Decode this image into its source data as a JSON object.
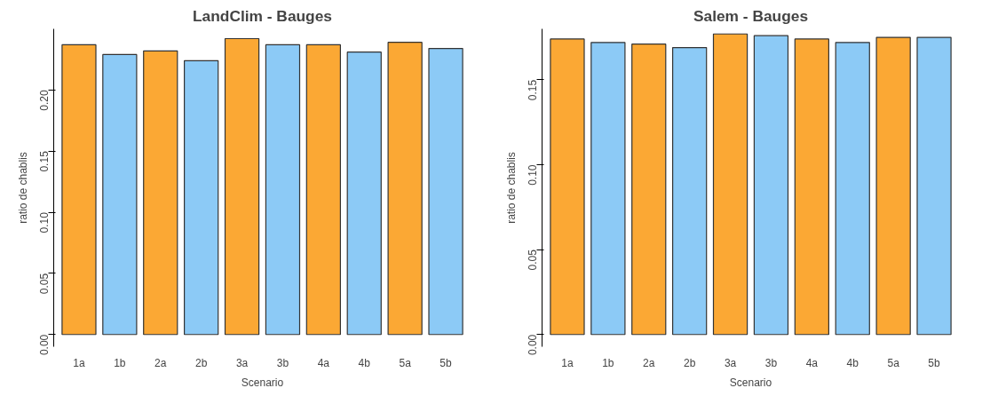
{
  "chart_data": [
    {
      "type": "bar",
      "title": "LandClim - Bauges",
      "xlabel": "Scenario",
      "ylabel": "ratio de chablis",
      "categories": [
        "1a",
        "1b",
        "2a",
        "2b",
        "3a",
        "3b",
        "4a",
        "4b",
        "5a",
        "5b"
      ],
      "values": [
        0.237,
        0.229,
        0.232,
        0.224,
        0.242,
        0.237,
        0.237,
        0.231,
        0.239,
        0.234
      ],
      "colors": [
        "#fba834",
        "#8ccaf6",
        "#fba834",
        "#8ccaf6",
        "#fba834",
        "#8ccaf6",
        "#fba834",
        "#8ccaf6",
        "#fba834",
        "#8ccaf6"
      ],
      "ylim": [
        0,
        0.25
      ],
      "yticks": [
        {
          "value": 0,
          "label": "0.00"
        },
        {
          "value": 0.05,
          "label": "0.05"
        },
        {
          "value": 0.1,
          "label": "0.10"
        },
        {
          "value": 0.15,
          "label": "0.15"
        },
        {
          "value": 0.2,
          "label": "0.20"
        }
      ],
      "grid": false
    },
    {
      "type": "bar",
      "title": "Salem - Bauges",
      "xlabel": "Scenario",
      "ylabel": "ratio de chablis",
      "categories": [
        "1a",
        "1b",
        "2a",
        "2b",
        "3a",
        "3b",
        "4a",
        "4b",
        "5a",
        "5b"
      ],
      "values": [
        0.174,
        0.172,
        0.171,
        0.169,
        0.177,
        0.176,
        0.174,
        0.172,
        0.175,
        0.175
      ],
      "colors": [
        "#fba834",
        "#8ccaf6",
        "#fba834",
        "#8ccaf6",
        "#fba834",
        "#8ccaf6",
        "#fba834",
        "#8ccaf6",
        "#fba834",
        "#8ccaf6"
      ],
      "ylim": [
        0,
        0.18
      ],
      "yticks": [
        {
          "value": 0,
          "label": "0.00"
        },
        {
          "value": 0.05,
          "label": "0.05"
        },
        {
          "value": 0.1,
          "label": "0.10"
        },
        {
          "value": 0.15,
          "label": "0.15"
        }
      ],
      "grid": false
    }
  ]
}
